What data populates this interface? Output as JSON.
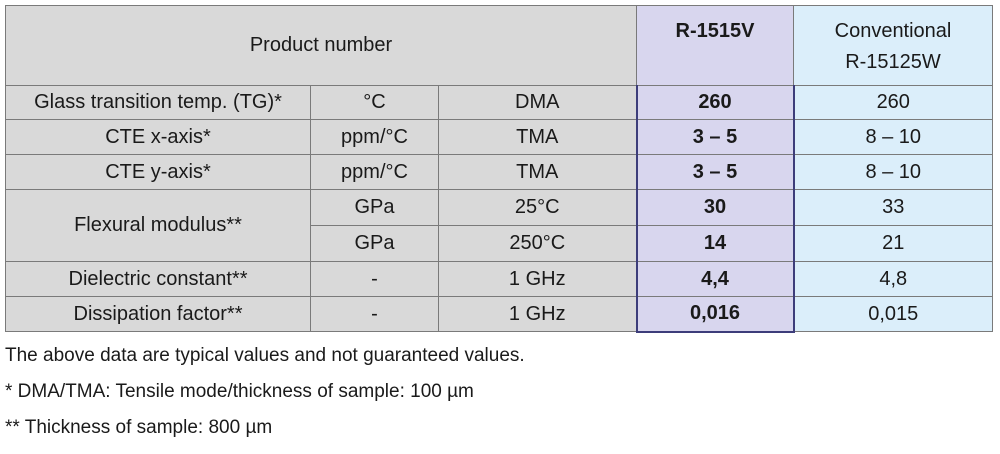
{
  "header": {
    "product_number_label": "Product number",
    "r1515v": "R-1515V",
    "conventional_line1": "Conventional",
    "conventional_line2": "R-15125W"
  },
  "rows": [
    {
      "property": "Glass transition temp. (TG)*",
      "unit": "°C",
      "method": "DMA",
      "r1515v": "260",
      "conventional": "260"
    },
    {
      "property": "CTE x-axis*",
      "unit": "ppm/°C",
      "method": "TMA",
      "r1515v": "3 – 5",
      "conventional": "8 – 10"
    },
    {
      "property": "CTE y-axis*",
      "unit": "ppm/°C",
      "method": "TMA",
      "r1515v": "3 – 5",
      "conventional": "8 – 10"
    },
    {
      "property": "Flexural modulus**",
      "unit": "GPa",
      "method": "25°C",
      "r1515v": "30",
      "conventional": "33"
    },
    {
      "property": "",
      "unit": "GPa",
      "method": "250°C",
      "r1515v": "14",
      "conventional": "21"
    },
    {
      "property": "Dielectric constant**",
      "unit": "-",
      "method": "1 GHz",
      "r1515v": "4,4",
      "conventional": "4,8"
    },
    {
      "property": "Dissipation factor**",
      "unit": "-",
      "method": "1 GHz",
      "r1515v": "0,016",
      "conventional": "0,015"
    }
  ],
  "colors": {
    "gray_cells": "#d9d9d9",
    "r1515v_column": "#d8d6ee",
    "conventional_column": "#dbeefa",
    "highlight_border": "#3d3d7a"
  },
  "notes": [
    "The above data are typical values and not guaranteed values.",
    "* DMA/TMA: Tensile mode/thickness of sample: 100 µm",
    "** Thickness of sample: 800 µm"
  ]
}
